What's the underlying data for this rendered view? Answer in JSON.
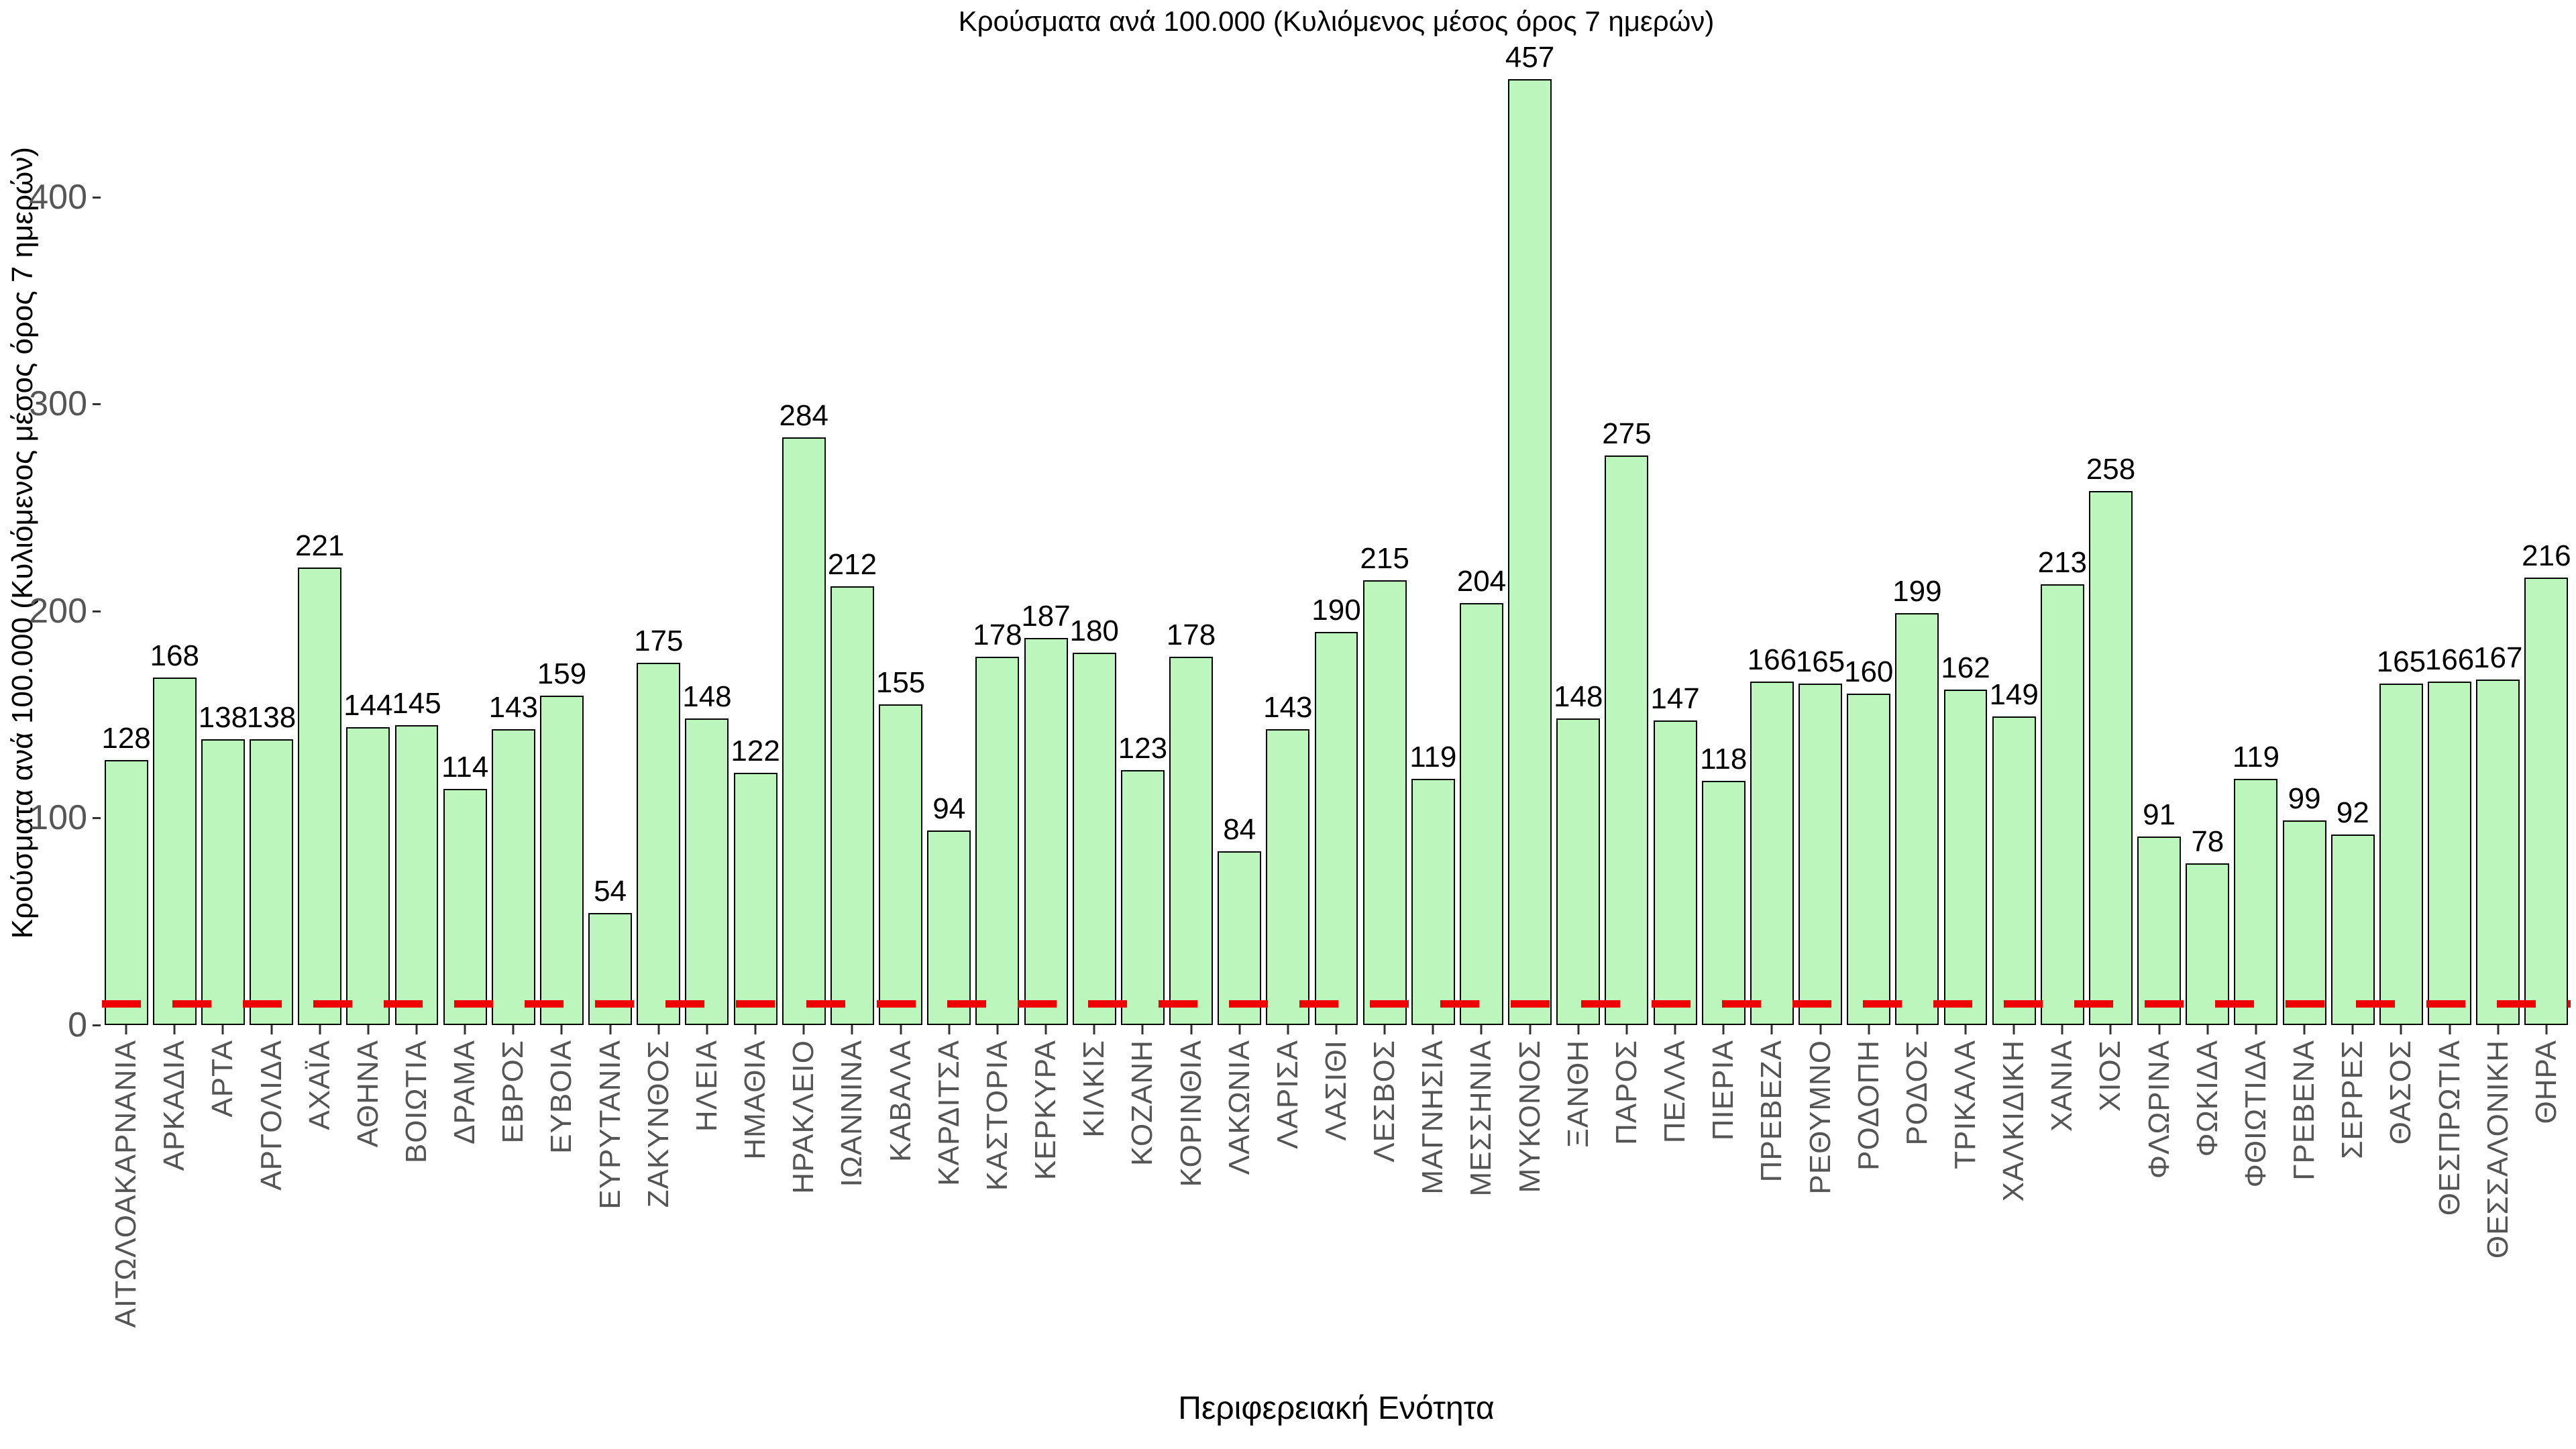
{
  "chart_data": {
    "type": "bar",
    "title": "Κρούσματα ανά 100.000 (Κυλιόμενος μέσος όρος 7 ημερών)",
    "xlabel": "Περιφερειακή Ενότητα",
    "ylabel": "Κρούσματα ανά 100.000 (Κυλιόμενος μέσος όρος 7 ημερών)",
    "categories": [
      "ΑΙΤΩΛΟΑΚΑΡΝΑΝΙΑ",
      "ΑΡΚΑΔΙΑ",
      "ΑΡΤΑ",
      "ΑΡΓΟΛΙΔΑ",
      "ΑΧΑΪΑ",
      "ΑΘΗΝΑ",
      "ΒΟΙΩΤΙΑ",
      "ΔΡΑΜΑ",
      "ΕΒΡΟΣ",
      "ΕΥΒΟΙΑ",
      "ΕΥΡΥΤΑΝΙΑ",
      "ΖΑΚΥΝΘΟΣ",
      "ΗΛΕΙΑ",
      "ΗΜΑΘΙΑ",
      "ΗΡΑΚΛΕΙΟ",
      "ΙΩΑΝΝΙΝΑ",
      "ΚΑΒΑΛΑ",
      "ΚΑΡΔΙΤΣΑ",
      "ΚΑΣΤΟΡΙΑ",
      "ΚΕΡΚΥΡΑ",
      "ΚΙΛΚΙΣ",
      "ΚΟΖΑΝΗ",
      "ΚΟΡΙΝΘΙΑ",
      "ΛΑΚΩΝΙΑ",
      "ΛΑΡΙΣΑ",
      "ΛΑΣΙΘΙ",
      "ΛΕΣΒΟΣ",
      "ΜΑΓΝΗΣΙΑ",
      "ΜΕΣΣΗΝΙΑ",
      "ΜΥΚΟΝΟΣ",
      "ΞΑΝΘΗ",
      "ΠΑΡΟΣ",
      "ΠΕΛΛΑ",
      "ΠΙΕΡΙΑ",
      "ΠΡΕΒΕΖΑ",
      "ΡΕΘΥΜΝΟ",
      "ΡΟΔΟΠΗ",
      "ΡΟΔΟΣ",
      "ΤΡΙΚΑΛΑ",
      "ΧΑΛΚΙΔΙΚΗ",
      "ΧΑΝΙΑ",
      "ΧΙΟΣ",
      "ΦΛΩΡΙΝΑ",
      "ΦΩΚΙΔΑ",
      "ΦΘΙΩΤΙΔΑ",
      "ΓΡΕΒΕΝΑ",
      "ΣΕΡΡΕΣ",
      "ΘΑΣΟΣ",
      "ΘΕΣΠΡΩΤΙΑ",
      "ΘΕΣΣΑΛΟΝΙΚΗ",
      "ΘΗΡΑ"
    ],
    "values": [
      128,
      168,
      138,
      138,
      221,
      144,
      145,
      114,
      143,
      159,
      54,
      175,
      148,
      122,
      284,
      212,
      155,
      94,
      178,
      187,
      180,
      123,
      178,
      84,
      143,
      190,
      215,
      119,
      204,
      457,
      148,
      275,
      147,
      118,
      166,
      165,
      160,
      199,
      162,
      149,
      213,
      258,
      91,
      78,
      119,
      99,
      92,
      165,
      166,
      167,
      216
    ],
    "yticks": [
      0,
      100,
      200,
      300,
      400
    ],
    "ylim": [
      0,
      466
    ],
    "grid": false,
    "legend": null,
    "bar_fill_color": "#bdf6bd",
    "bar_edge_color": "#000000",
    "value_label_color": "#000000",
    "axis_text_color": "#555555",
    "threshold_line": {
      "value": 10,
      "color": "#ee0000",
      "style": "dashed"
    }
  }
}
